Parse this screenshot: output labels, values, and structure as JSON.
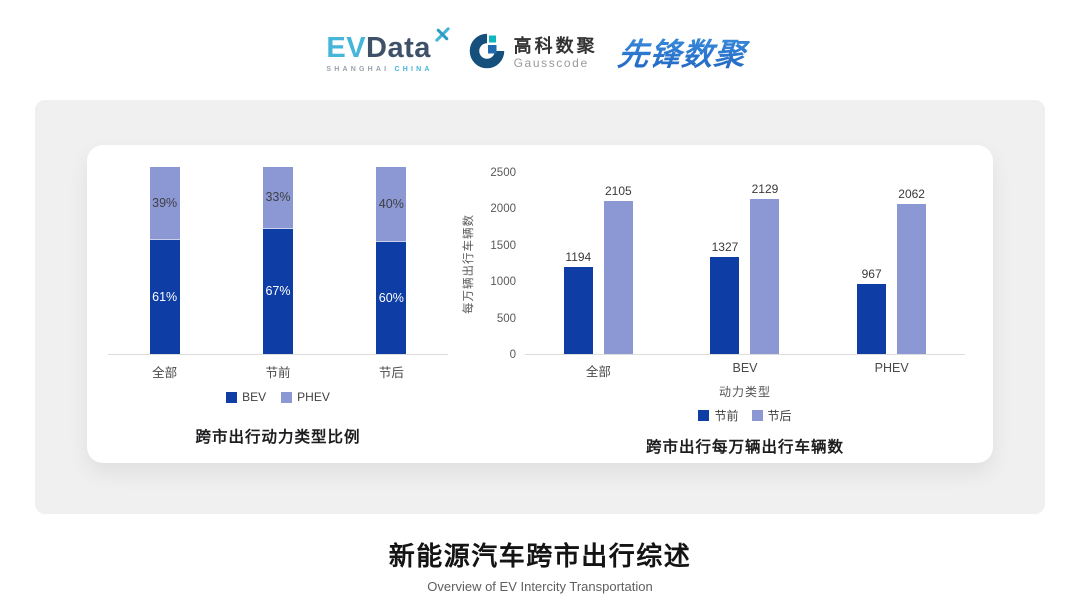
{
  "logos": {
    "evdata": {
      "ev": "EV",
      "data": "Data",
      "sub_left": "SHANGHAI",
      "sub_right": "CHINA",
      "accent": "#45b5da",
      "dark": "#3e5168"
    },
    "gausscode": {
      "cn": "高科数聚",
      "en": "Gausscode",
      "mark_color": "#15507c",
      "teal": "#0fb5bf",
      "blue": "#1e6bb0"
    },
    "xianfeng": {
      "text": "先锋数聚",
      "color": "#2b7cd6"
    }
  },
  "chart_data": [
    {
      "type": "bar",
      "variant": "stacked-100-percent",
      "title": "跨市出行动力类型比例",
      "categories": [
        "全部",
        "节前",
        "节后"
      ],
      "series": [
        {
          "name": "BEV",
          "color": "#0d3da5",
          "values": [
            61,
            67,
            60
          ],
          "labels": [
            "61%",
            "67%",
            "60%"
          ]
        },
        {
          "name": "PHEV",
          "color": "#8c98d3",
          "values": [
            39,
            33,
            40
          ],
          "labels": [
            "39%",
            "33%",
            "40%"
          ]
        }
      ],
      "xlabel": "",
      "ylabel": "",
      "grid": false,
      "legend_position": "bottom"
    },
    {
      "type": "bar",
      "variant": "grouped",
      "title": "跨市出行每万辆出行车辆数",
      "categories": [
        "全部",
        "BEV",
        "PHEV"
      ],
      "series": [
        {
          "name": "节前",
          "color": "#0d3da5",
          "values": [
            1194,
            1327,
            967
          ]
        },
        {
          "name": "节后",
          "color": "#8c98d3",
          "values": [
            2105,
            2129,
            2062
          ]
        }
      ],
      "xlabel": "动力类型",
      "ylabel": "每万辆出行车辆数",
      "ylim": [
        0,
        2500
      ],
      "yticks": [
        0,
        500,
        1000,
        1500,
        2000,
        2500
      ],
      "grid": false,
      "legend_position": "bottom"
    }
  ],
  "footer": {
    "title": "新能源汽车跨市出行综述",
    "subtitle": "Overview of EV Intercity Transportation"
  }
}
